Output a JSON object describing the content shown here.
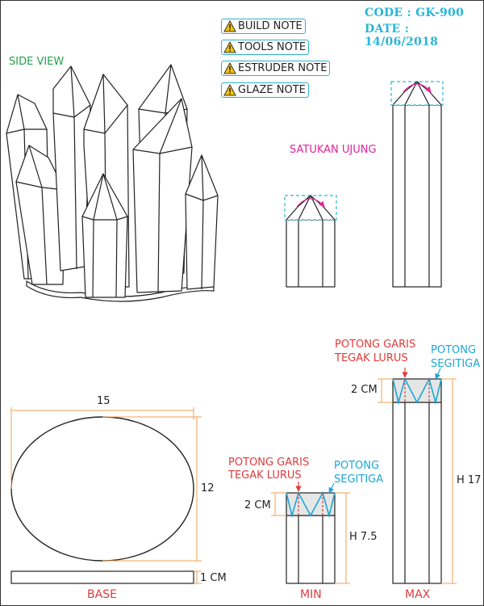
{
  "notes": [
    {
      "label": "BUILD NOTE",
      "icon": "warning-icon"
    },
    {
      "label": "TOOLS NOTE",
      "icon": "warning-icon"
    },
    {
      "label": "ESTRUDER NOTE",
      "icon": "warning-icon"
    },
    {
      "label": "GLAZE NOTE",
      "icon": "warning-icon"
    }
  ],
  "meta": {
    "code": "CODE : GK-900",
    "date": "DATE : 14/06/2018"
  },
  "labels": {
    "side_view": "SIDE VIEW",
    "join_tips": "SATUKAN UJUNG",
    "cut_straight_1": "POTONG GARIS",
    "cut_straight_2": "TEGAK LURUS",
    "cut_triangle_1": "POTONG",
    "cut_triangle_2": "SEGITIGA",
    "two_cm": "2 CM",
    "h_7_5": "H 7.5",
    "h_17": "H 17",
    "width_15": "15",
    "height_12": "12",
    "one_cm": "1 CM",
    "base": "BASE",
    "min": "MIN",
    "max": "MAX"
  },
  "colors": {
    "accent_cyan": "#27b6d6",
    "dimension_orange": "#f0a050",
    "cut_red": "#e03a3a",
    "guide_magenta": "#e4239a",
    "title_green": "#1fa24a",
    "warning_yellow": "#f5c400"
  }
}
